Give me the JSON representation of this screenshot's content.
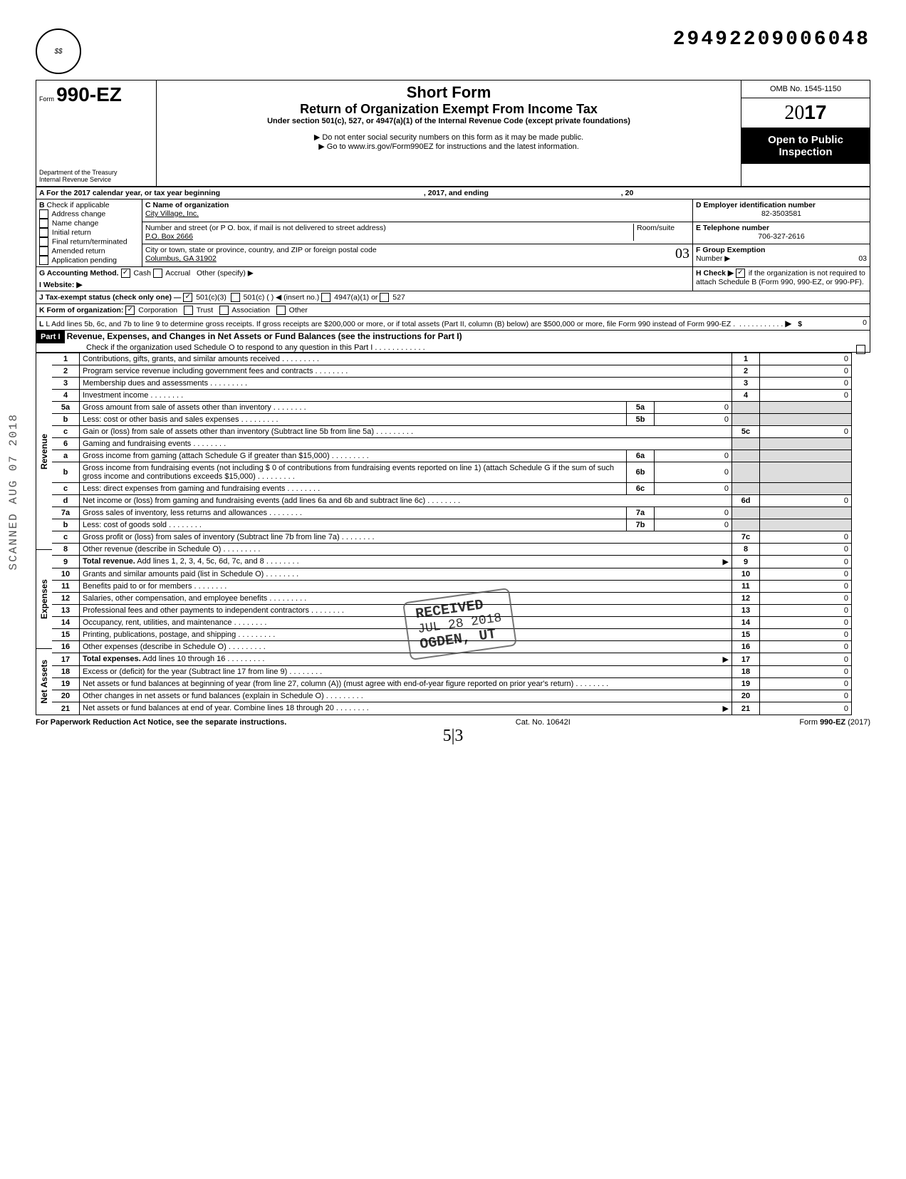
{
  "docNumber": "29492209006048",
  "formNumber": "990-EZ",
  "formLabel": "Form",
  "shortForm": "Short Form",
  "returnTitle": "Return of Organization Exempt From Income Tax",
  "subtitle": "Under section 501(c), 527, or 4947(a)(1) of the Internal Revenue Code (except private foundations)",
  "doNotEnter": "▶ Do not enter social security numbers on this form as it may be made public.",
  "goTo": "▶ Go to www.irs.gov/Form990EZ for instructions and the latest information.",
  "dept": "Department of the Treasury",
  "irs": "Internal Revenue Service",
  "omb": "OMB No. 1545-1150",
  "year": "2017",
  "yearOutline": "20",
  "openPublic": "Open to Public",
  "inspection": "Inspection",
  "lineA": "A For the 2017 calendar year, or tax year beginning",
  "lineA2": ", 2017, and ending",
  "lineA3": ", 20",
  "B": {
    "label": "B",
    "check": "Check if applicable",
    "items": [
      "Address change",
      "Name change",
      "Initial return",
      "Final return/terminated",
      "Amended return",
      "Application pending"
    ]
  },
  "C": {
    "label": "C Name of organization",
    "value": "City Village, Inc.",
    "addrLabel": "Number and street (or P O. box, if mail is not delivered to street address)",
    "room": "Room/suite",
    "addr": "P.O. Box 2666",
    "cityLabel": "City or town, state or province, country, and ZIP or foreign postal code",
    "city": "Columbus, GA 31902"
  },
  "D": {
    "label": "D Employer identification number",
    "value": "82-3503581"
  },
  "E": {
    "label": "E Telephone number",
    "value": "706-327-2616"
  },
  "F": {
    "label": "F Group Exemption",
    "label2": "Number ▶",
    "value": "03"
  },
  "G": {
    "label": "G Accounting Method.",
    "cash": "Cash",
    "accrual": "Accrual",
    "other": "Other (specify) ▶"
  },
  "H": {
    "label": "H Check ▶",
    "text": "if the organization is not required to attach Schedule B (Form 990, 990-EZ, or 990-PF)."
  },
  "I": "I  Website: ▶",
  "J": {
    "label": "J Tax-exempt status (check only one) —",
    "c3": "501(c)(3)",
    "c": "501(c) (",
    "insert": ") ◀ (insert no.)",
    "a1": "4947(a)(1) or",
    "s527": "527"
  },
  "K": {
    "label": "K Form of organization:",
    "corp": "Corporation",
    "trust": "Trust",
    "assoc": "Association",
    "other": "Other"
  },
  "L": {
    "text": "L Add lines 5b, 6c, and 7b to line 9 to determine gross receipts. If gross receipts are $200,000 or more, or if total assets (Part II, column (B) below) are $500,000 or more, file Form 990 instead of Form 990-EZ .",
    "arrow": "▶",
    "dollar": "$",
    "value": "0"
  },
  "partI": {
    "label": "Part I",
    "title": "Revenue, Expenses, and Changes in Net Assets or Fund Balances (see the instructions for Part I)",
    "check": "Check if the organization used Schedule O to respond to any question in this Part I"
  },
  "handwrittenBox": "03",
  "sections": {
    "revenue": "Revenue",
    "expenses": "Expenses",
    "netassets": "Net Assets"
  },
  "lines": [
    {
      "n": "1",
      "d": "Contributions, gifts, grants, and similar amounts received .",
      "l": "1",
      "v": "0"
    },
    {
      "n": "2",
      "d": "Program service revenue including government fees and contracts",
      "l": "2",
      "v": "0"
    },
    {
      "n": "3",
      "d": "Membership dues and assessments .",
      "l": "3",
      "v": "0"
    },
    {
      "n": "4",
      "d": "Investment income",
      "l": "4",
      "v": "0"
    },
    {
      "n": "5a",
      "d": "Gross amount from sale of assets other than inventory",
      "il": "5a",
      "iv": "0"
    },
    {
      "n": "b",
      "d": "Less: cost or other basis and sales expenses .",
      "il": "5b",
      "iv": "0"
    },
    {
      "n": "c",
      "d": "Gain or (loss) from sale of assets other than inventory (Subtract line 5b from line 5a) .",
      "l": "5c",
      "v": "0"
    },
    {
      "n": "6",
      "d": "Gaming and fundraising events"
    },
    {
      "n": "a",
      "d": "Gross income from gaming (attach Schedule G if greater than $15,000) .",
      "il": "6a",
      "iv": "0"
    },
    {
      "n": "b",
      "d": "Gross income from fundraising events (not including  $                    0 of contributions from fundraising events reported on line 1) (attach Schedule G if the sum of such gross income and contributions exceeds $15,000) .",
      "il": "6b",
      "iv": "0"
    },
    {
      "n": "c",
      "d": "Less: direct expenses from gaming and fundraising events",
      "il": "6c",
      "iv": "0"
    },
    {
      "n": "d",
      "d": "Net income or (loss) from gaming and fundraising events (add lines 6a and 6b and subtract line 6c)",
      "l": "6d",
      "v": "0"
    },
    {
      "n": "7a",
      "d": "Gross sales of inventory, less returns and allowances",
      "il": "7a",
      "iv": "0"
    },
    {
      "n": "b",
      "d": "Less: cost of goods sold",
      "il": "7b",
      "iv": "0"
    },
    {
      "n": "c",
      "d": "Gross profit or (loss) from sales of inventory (Subtract line 7b from line 7a)",
      "l": "7c",
      "v": "0"
    },
    {
      "n": "8",
      "d": "Other revenue (describe in Schedule O) .",
      "l": "8",
      "v": "0"
    },
    {
      "n": "9",
      "d": "Total revenue. Add lines 1, 2, 3, 4, 5c, 6d, 7c, and 8",
      "l": "9",
      "v": "0",
      "bold": true,
      "arrow": true
    },
    {
      "n": "10",
      "d": "Grants and similar amounts paid (list in Schedule O)",
      "l": "10",
      "v": "0"
    },
    {
      "n": "11",
      "d": "Benefits paid to or for members",
      "l": "11",
      "v": "0"
    },
    {
      "n": "12",
      "d": "Salaries, other compensation, and employee benefits .",
      "l": "12",
      "v": "0"
    },
    {
      "n": "13",
      "d": "Professional fees and other payments to independent contractors",
      "l": "13",
      "v": "0"
    },
    {
      "n": "14",
      "d": "Occupancy, rent, utilities, and maintenance",
      "l": "14",
      "v": "0"
    },
    {
      "n": "15",
      "d": "Printing, publications, postage, and shipping .",
      "l": "15",
      "v": "0"
    },
    {
      "n": "16",
      "d": "Other expenses (describe in Schedule O) .",
      "l": "16",
      "v": "0"
    },
    {
      "n": "17",
      "d": "Total expenses. Add lines 10 through 16 .",
      "l": "17",
      "v": "0",
      "bold": true,
      "arrow": true
    },
    {
      "n": "18",
      "d": "Excess or (deficit) for the year (Subtract line 17 from line 9)",
      "l": "18",
      "v": "0"
    },
    {
      "n": "19",
      "d": "Net assets or fund balances at beginning of year (from line 27, column (A)) (must agree with end-of-year figure reported on prior year's return)",
      "l": "19",
      "v": "0"
    },
    {
      "n": "20",
      "d": "Other changes in net assets or fund balances (explain in Schedule O) .",
      "l": "20",
      "v": "0"
    },
    {
      "n": "21",
      "d": "Net assets or fund balances at end of year. Combine lines 18 through 20",
      "l": "21",
      "v": "0",
      "arrow": true
    }
  ],
  "footer": {
    "left": "For Paperwork Reduction Act Notice, see the separate instructions.",
    "center": "Cat. No. 10642I",
    "right": "Form 990-EZ (2017)"
  },
  "handwriteBottom": "5|3",
  "stamp": {
    "received": "RECEIVED",
    "date": "JUL 28 2018",
    "city": "OGDEN, UT"
  },
  "sideText": "SCANNED AUG 07 2018"
}
